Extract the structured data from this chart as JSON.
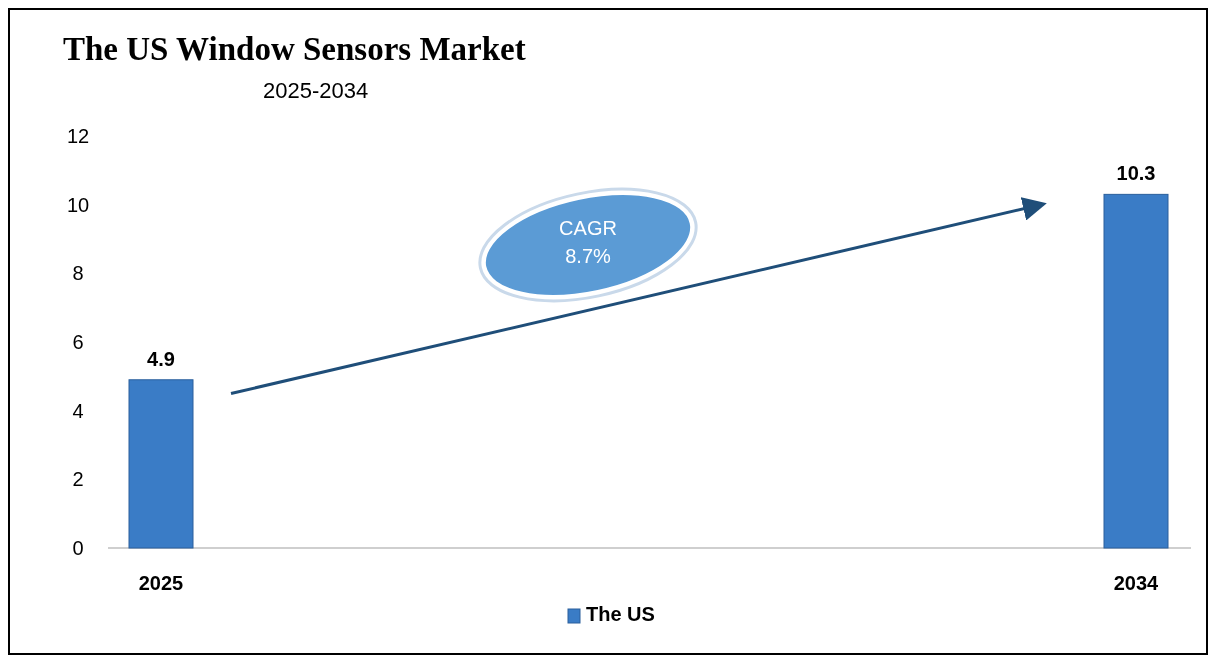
{
  "chart_data": {
    "type": "bar",
    "title": "The US Window Sensors Market",
    "subtitle": "2025-2034",
    "categories": [
      "2025",
      "2034"
    ],
    "series": [
      {
        "name": "The US",
        "color": "#3a7cc6",
        "values": [
          4.9,
          10.3
        ]
      }
    ],
    "ylim": [
      0,
      12
    ],
    "yticks": [
      0,
      2,
      4,
      6,
      8,
      10,
      12
    ],
    "grid": false,
    "legend": "bottom",
    "data_labels": true,
    "annotations": [
      "CAGR 8.7%"
    ]
  }
}
